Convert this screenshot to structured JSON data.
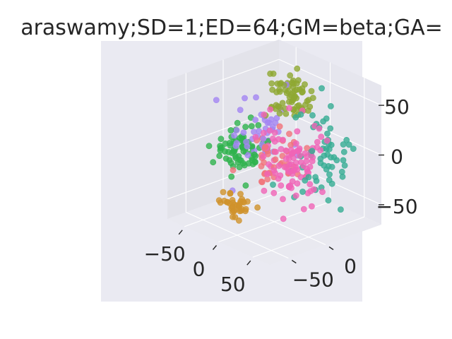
{
  "chart_data": {
    "type": "scatter",
    "title": "araswamy;SD=1;ED=64;GM=beta;GA=",
    "projection": "3d",
    "grid": true,
    "xlim": [
      -75,
      75
    ],
    "ylim": [
      -75,
      75
    ],
    "zlim": [
      -70,
      70
    ],
    "x_ticks": [
      {
        "value": -50,
        "label": "−50"
      },
      {
        "value": 0,
        "label": "0"
      },
      {
        "value": 50,
        "label": "50"
      }
    ],
    "y_ticks": [
      {
        "value": -50,
        "label": "−50"
      },
      {
        "value": 0,
        "label": "0"
      }
    ],
    "z_ticks": [
      {
        "value": -50,
        "label": "−50"
      },
      {
        "value": 0,
        "label": "0"
      },
      {
        "value": 50,
        "label": "50"
      }
    ],
    "colors": {
      "axes_background": "#eaeaf2",
      "pane_side": "#e3e3ea",
      "pane_back": "#e6e6ee",
      "pane_floor": "#e9e9f0",
      "grid": "#ffffff",
      "text": "#262626"
    },
    "clusters": [
      {
        "color": "#8fa832",
        "count": 70,
        "center": [
          -10,
          30,
          45
        ],
        "spread": [
          13,
          11,
          10
        ]
      },
      {
        "color": "#2fb34e",
        "count": 75,
        "center": [
          -55,
          5,
          -15
        ],
        "spread": [
          13,
          13,
          11
        ]
      },
      {
        "color": "#a385f2",
        "count": 45,
        "center": [
          -30,
          10,
          8
        ],
        "spread": [
          12,
          15,
          18
        ]
      },
      {
        "color": "#f064b7",
        "count": 95,
        "center": [
          30,
          -5,
          0
        ],
        "spread": [
          16,
          16,
          22
        ]
      },
      {
        "color": "#f1737a",
        "count": 40,
        "center": [
          5,
          0,
          -5
        ],
        "spread": [
          13,
          13,
          13
        ]
      },
      {
        "color": "#36ad93",
        "count": 60,
        "center": [
          45,
          25,
          5
        ],
        "spread": [
          15,
          15,
          20
        ]
      },
      {
        "color": "#cf922c",
        "count": 38,
        "center": [
          -15,
          -40,
          -50
        ],
        "spread": [
          11,
          10,
          8
        ]
      }
    ]
  }
}
